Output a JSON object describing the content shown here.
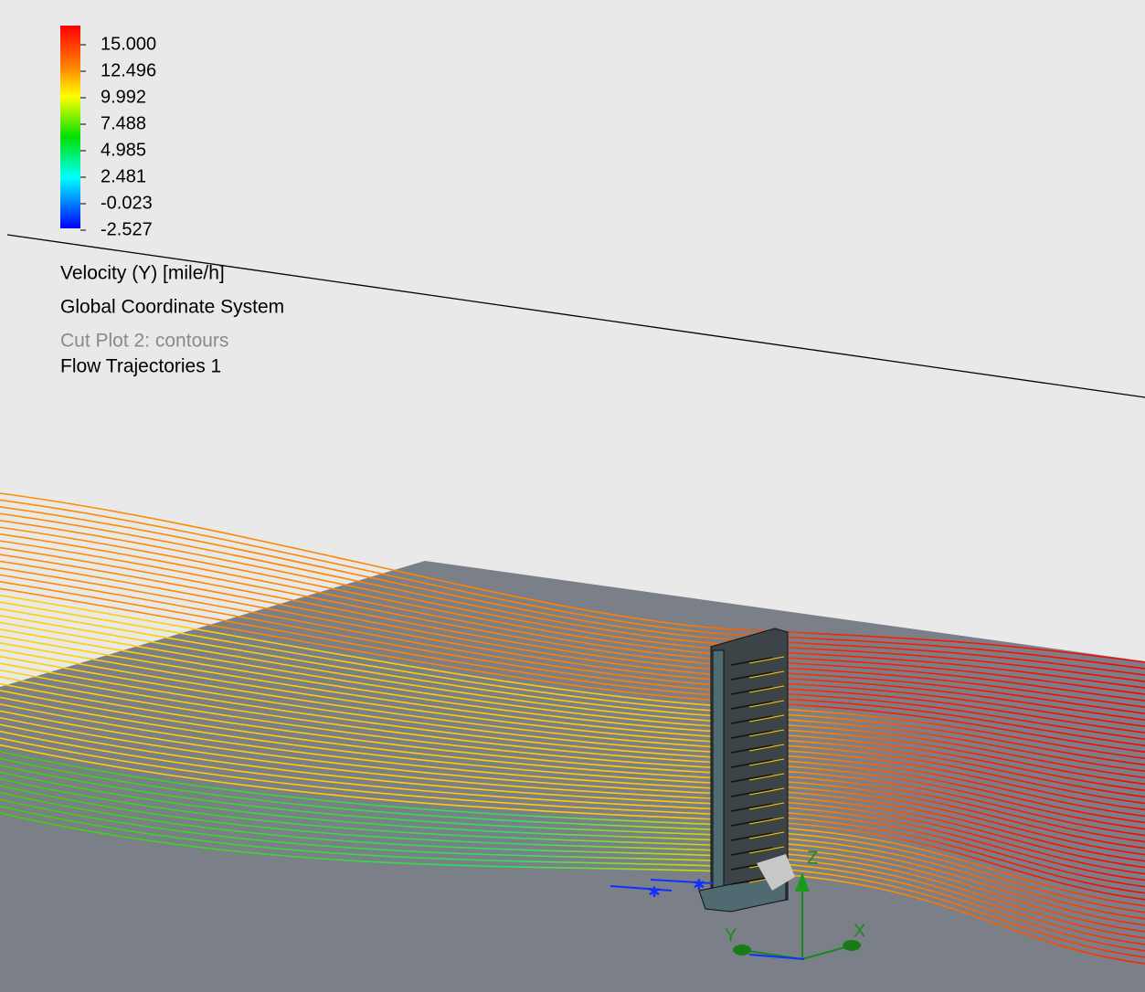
{
  "legend": {
    "ticks": [
      "15.000",
      "12.496",
      "9.992",
      "7.488",
      "4.985",
      "2.481",
      "-0.023",
      "-2.527"
    ],
    "title": "Velocity (Y) [mile/h]"
  },
  "captions": {
    "coordinate_system": "Global Coordinate System",
    "cut_plot": "Cut Plot 2: contours",
    "trajectories": "Flow Trajectories 1"
  },
  "triad": {
    "z": "Z",
    "y": "Y",
    "x": "X"
  }
}
